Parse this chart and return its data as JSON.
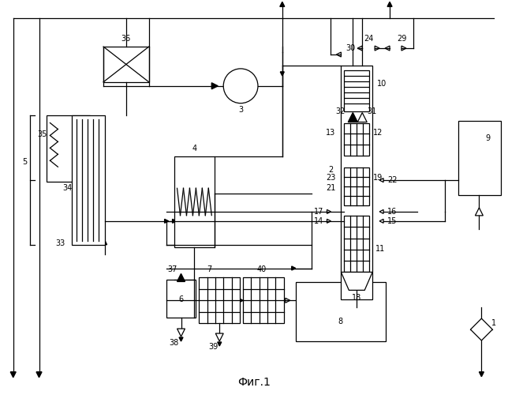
{
  "title": "Фиг.1",
  "bg_color": "#ffffff",
  "line_color": "#000000",
  "fig_width": 6.44,
  "fig_height": 5.0,
  "dpi": 100
}
